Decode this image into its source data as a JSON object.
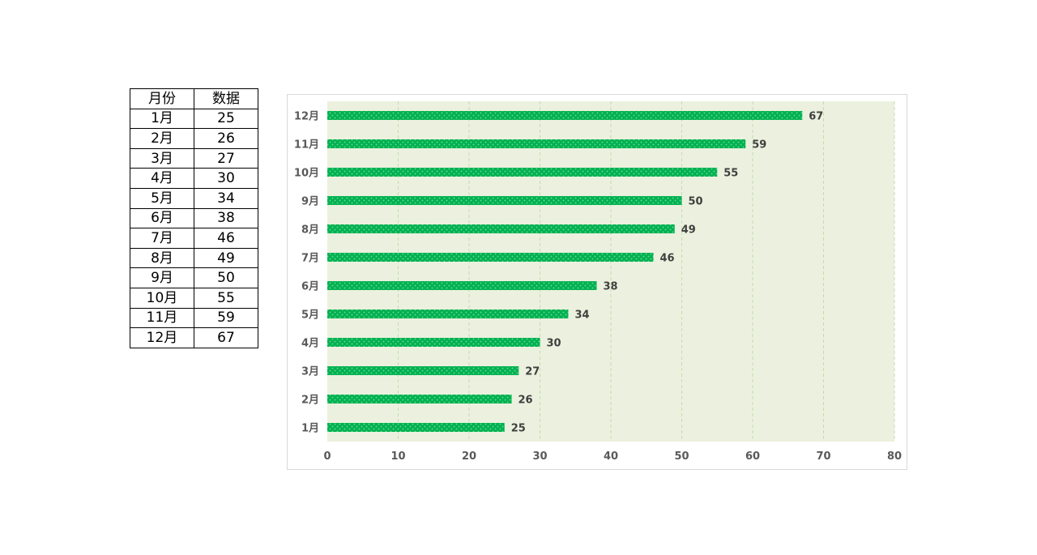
{
  "table": {
    "headers": [
      "月份",
      "数据"
    ],
    "rows": [
      [
        "1月",
        "25"
      ],
      [
        "2月",
        "26"
      ],
      [
        "3月",
        "27"
      ],
      [
        "4月",
        "30"
      ],
      [
        "5月",
        "34"
      ],
      [
        "6月",
        "38"
      ],
      [
        "7月",
        "46"
      ],
      [
        "8月",
        "49"
      ],
      [
        "9月",
        "50"
      ],
      [
        "10月",
        "55"
      ],
      [
        "11月",
        "59"
      ],
      [
        "12月",
        "67"
      ]
    ]
  },
  "chart_data": {
    "type": "bar",
    "orientation": "horizontal",
    "categories": [
      "1月",
      "2月",
      "3月",
      "4月",
      "5月",
      "6月",
      "7月",
      "8月",
      "9月",
      "10月",
      "11月",
      "12月"
    ],
    "values": [
      25,
      26,
      27,
      30,
      34,
      38,
      46,
      49,
      50,
      55,
      59,
      67
    ],
    "xlim": [
      0,
      80
    ],
    "xticks": [
      "0",
      "10",
      "20",
      "30",
      "40",
      "50",
      "60",
      "70",
      "80"
    ],
    "title": "",
    "xlabel": "",
    "ylabel": "",
    "grid": true,
    "legend": "none",
    "data_labels": true,
    "colors": {
      "bar": "#00b050",
      "bar_pattern_dot": "#5fd68f",
      "plot_background": "#ebf1de",
      "gridline": "#c4dcb0"
    }
  }
}
